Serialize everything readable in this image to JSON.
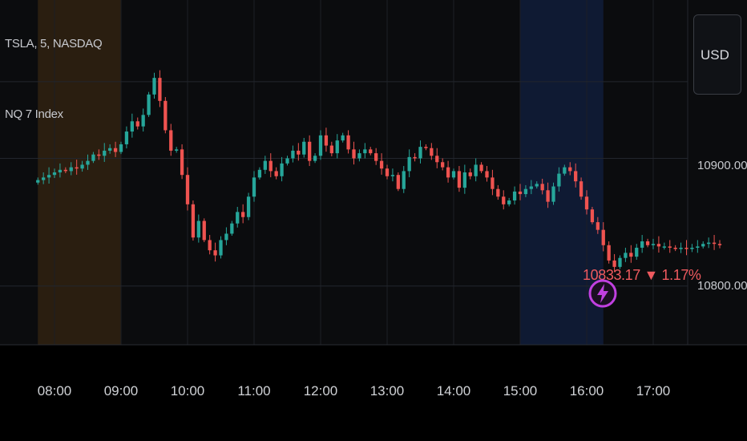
{
  "legend": {
    "symbol": "TSLA, 5, NASDAQ",
    "index": "NQ 7 Index"
  },
  "currency": "USD",
  "last_price": {
    "text": "10833.17 ▼ 1.17%",
    "color": "#ef5a5f"
  },
  "icons": {
    "flash": "lightning-bolt-icon"
  },
  "colors": {
    "up": "#26a69a",
    "down": "#ef5350",
    "premarket_shade": "#2a1e10",
    "postmarket_shade": "#0f1a33",
    "flash_ring": "#c040e0"
  },
  "chart_data": {
    "type": "candlestick",
    "xlabel": "",
    "ylabel": "",
    "x_ticks": [
      "08:00",
      "09:00",
      "10:00",
      "11:00",
      "12:00",
      "13:00",
      "14:00",
      "15:00",
      "16:00",
      "17:00"
    ],
    "y_ticks": [
      "10900.00",
      "10800.00"
    ],
    "ylim": [
      10754,
      11024
    ],
    "grid": true,
    "sessions": [
      {
        "name": "pre-market",
        "start": "07:45",
        "end": "09:00"
      },
      {
        "name": "post-market",
        "start": "15:00",
        "end": "16:15"
      }
    ],
    "interval_minutes": 5,
    "first_bar": "07:45",
    "closes": [
      10883,
      10885,
      10887,
      10889,
      10891,
      10890,
      10893,
      10892,
      10895,
      10898,
      10903,
      10902,
      10906,
      10908,
      10905,
      10911,
      10921,
      10929,
      10925,
      10934,
      10950,
      10963,
      10945,
      10922,
      10906,
      10907,
      10887,
      10864,
      10838,
      10851,
      10836,
      10828,
      10824,
      10836,
      10841,
      10849,
      10858,
      10854,
      10870,
      10885,
      10891,
      10898,
      10890,
      10886,
      10896,
      10900,
      10906,
      10903,
      10913,
      10898,
      10902,
      10918,
      10910,
      10904,
      10914,
      10918,
      10907,
      10900,
      10904,
      10907,
      10904,
      10898,
      10892,
      10886,
      10887,
      10876,
      10890,
      10901,
      10900,
      10909,
      10908,
      10902,
      10897,
      10893,
      10885,
      10890,
      10877,
      10889,
      10886,
      10895,
      10890,
      10885,
      10876,
      10870,
      10864,
      10867,
      10874,
      10872,
      10876,
      10878,
      10880,
      10875,
      10866,
      10878,
      10888,
      10893,
      10890,
      10882,
      10870,
      10860,
      10850,
      10844,
      10832,
      10820,
      10815,
      10822,
      10826,
      10823,
      10830,
      10835,
      10832,
      10833,
      10831,
      10831,
      10830,
      10829,
      10830,
      10829,
      10830,
      10831,
      10833,
      10834,
      10833,
      10832
    ]
  }
}
